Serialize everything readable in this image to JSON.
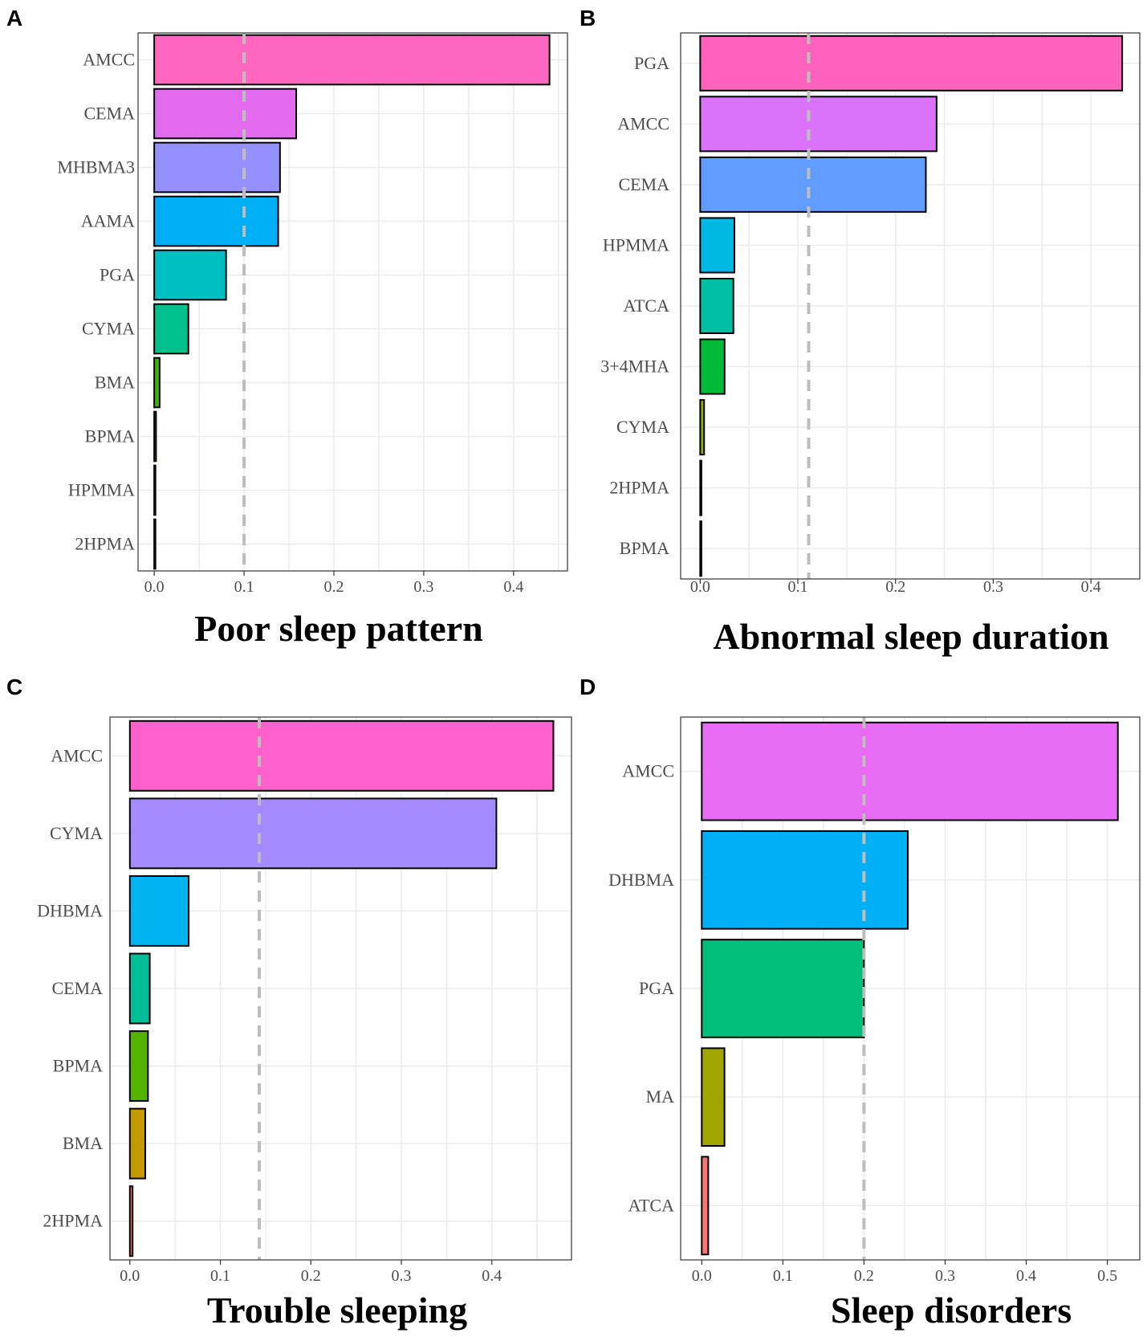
{
  "chart_data": [
    {
      "panel": "A",
      "type": "bar",
      "orientation": "horizontal",
      "title": "Poor sleep pattern",
      "categories": [
        "AMCC",
        "CEMA",
        "MHBMA3",
        "AAMA",
        "PGA",
        "CYMA",
        "BMA",
        "BPMA",
        "HPMMA",
        "2HPMA"
      ],
      "values": [
        0.44,
        0.158,
        0.14,
        0.138,
        0.08,
        0.038,
        0.006,
        0.002,
        0.001,
        0.0005
      ],
      "colors": [
        "#FF66C0",
        "#E36BF0",
        "#9590FF",
        "#00B0F6",
        "#00BFC4",
        "#00C08B",
        "#39B600",
        "#6B8E00",
        "#A3A500",
        "#D89000"
      ],
      "threshold": 0.1,
      "xlim": [
        -0.018,
        0.46
      ],
      "ticks": [
        0.0,
        0.1,
        0.2,
        0.3,
        0.4
      ],
      "tick_labels": [
        "0.0",
        "0.1",
        "0.2",
        "0.3",
        "0.4"
      ],
      "grid": true
    },
    {
      "panel": "B",
      "type": "bar",
      "orientation": "horizontal",
      "title": "Abnormal sleep duration",
      "categories": [
        "PGA",
        "AMCC",
        "CEMA",
        "HPMMA",
        "ATCA",
        "3+4MHA",
        "CYMA",
        "2HPMA",
        "BPMA"
      ],
      "values": [
        0.432,
        0.242,
        0.231,
        0.035,
        0.034,
        0.025,
        0.004,
        0.001,
        0.0005
      ],
      "colors": [
        "#FF62BC",
        "#DB72FB",
        "#619CFF",
        "#00B9E3",
        "#00BFA5",
        "#00BA38",
        "#93AA00",
        "#6B8E00",
        "#D39200"
      ],
      "threshold": 0.111,
      "xlim": [
        -0.02,
        0.45
      ],
      "ticks": [
        0.0,
        0.1,
        0.2,
        0.3,
        0.4
      ],
      "tick_labels": [
        "0.0",
        "0.1",
        "0.2",
        "0.3",
        "0.4"
      ],
      "grid": true
    },
    {
      "panel": "C",
      "type": "bar",
      "orientation": "horizontal",
      "title": "Trouble sleeping",
      "categories": [
        "AMCC",
        "CYMA",
        "DHBMA",
        "CEMA",
        "BPMA",
        "BMA",
        "2HPMA"
      ],
      "values": [
        0.468,
        0.405,
        0.065,
        0.022,
        0.02,
        0.017,
        0.003
      ],
      "colors": [
        "#FF61CC",
        "#A58AFF",
        "#00B4EF",
        "#00BE99",
        "#53B400",
        "#C49A00",
        "#F8766D"
      ],
      "threshold": 0.143,
      "xlim": [
        -0.022,
        0.488
      ],
      "ticks": [
        0.0,
        0.1,
        0.2,
        0.3,
        0.4
      ],
      "tick_labels": [
        "0.0",
        "0.1",
        "0.2",
        "0.3",
        "0.4"
      ],
      "grid": true
    },
    {
      "panel": "D",
      "type": "bar",
      "orientation": "horizontal",
      "title": "Sleep disorders",
      "categories": [
        "AMCC",
        "DHBMA",
        "PGA",
        "MA",
        "ATCA"
      ],
      "values": [
        0.513,
        0.254,
        0.2,
        0.028,
        0.008
      ],
      "colors": [
        "#E76BF3",
        "#00B0F6",
        "#00BF7D",
        "#A3A500",
        "#F8766D"
      ],
      "threshold": 0.2,
      "xlim": [
        -0.026,
        0.54
      ],
      "ticks": [
        0.0,
        0.1,
        0.2,
        0.3,
        0.4,
        0.5
      ],
      "tick_labels": [
        "0.0",
        "0.1",
        "0.2",
        "0.3",
        "0.4",
        "0.5"
      ],
      "grid": true
    }
  ]
}
